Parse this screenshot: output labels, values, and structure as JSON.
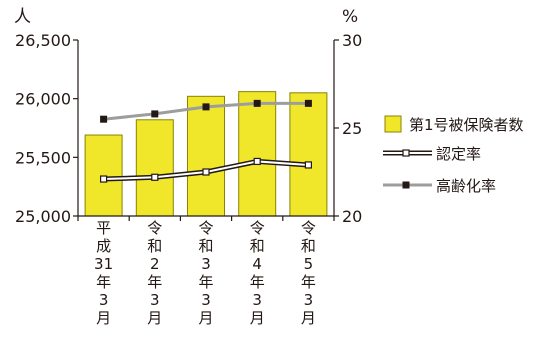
{
  "chart_data": {
    "type": "bar",
    "categories": [
      [
        "平",
        "成",
        "31",
        "年",
        "3",
        "月"
      ],
      [
        "令",
        "和",
        "2",
        "年",
        "3",
        "月"
      ],
      [
        "令",
        "和",
        "3",
        "年",
        "3",
        "月"
      ],
      [
        "令",
        "和",
        "4",
        "年",
        "3",
        "月"
      ],
      [
        "令",
        "和",
        "5",
        "年",
        "3",
        "月"
      ]
    ],
    "left_axis": {
      "unit": "人",
      "ylim": [
        25000,
        26500
      ],
      "ticks": [
        25000,
        25500,
        26000,
        26500
      ],
      "tick_labels": [
        "25,000",
        "25,500",
        "26,000",
        "26,500"
      ]
    },
    "right_axis": {
      "unit": "%",
      "ylim": [
        20,
        30
      ],
      "ticks": [
        20,
        25,
        30
      ],
      "tick_labels": [
        "20",
        "25",
        "30"
      ]
    },
    "series": [
      {
        "name": "第1号被保険者数",
        "type": "bar",
        "axis": "left",
        "values": [
          25690,
          25820,
          26020,
          26060,
          26050
        ],
        "color": "#f0e62a"
      },
      {
        "name": "認定率",
        "type": "line",
        "axis": "right",
        "values": [
          22.1,
          22.2,
          22.5,
          23.1,
          22.9
        ],
        "color": "#231815"
      },
      {
        "name": "高齢化率",
        "type": "line",
        "axis": "right",
        "values": [
          25.5,
          25.8,
          26.2,
          26.4,
          26.4
        ],
        "color": "#9d9d9d"
      }
    ],
    "legend_position": "right",
    "grid": false
  }
}
